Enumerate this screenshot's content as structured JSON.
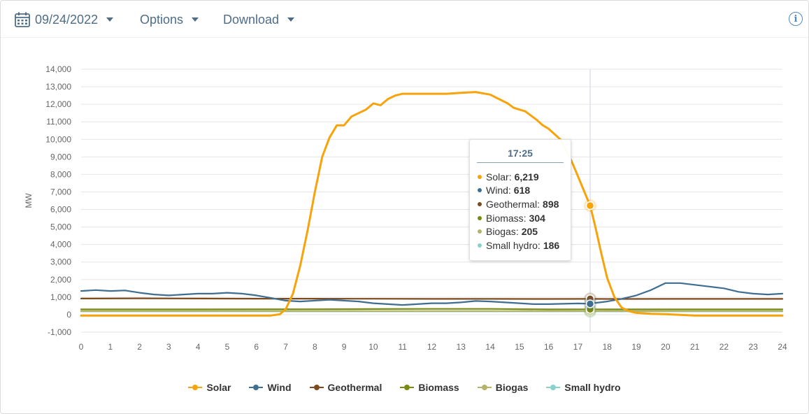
{
  "toolbar": {
    "date": "09/24/2022",
    "options_label": "Options",
    "download_label": "Download",
    "info_glyph": "i",
    "calendar_icon": "calendar-icon",
    "info_icon": "info-icon"
  },
  "tooltip": {
    "time": "17:25",
    "rows": [
      {
        "name": "Solar",
        "value": "6,219",
        "color": "#f7a40c"
      },
      {
        "name": "Wind",
        "value": "618",
        "color": "#3f6e91"
      },
      {
        "name": "Geothermal",
        "value": "898",
        "color": "#7d4a1c"
      },
      {
        "name": "Biomass",
        "value": "304",
        "color": "#7a8a10"
      },
      {
        "name": "Biogas",
        "value": "205",
        "color": "#b3b36b"
      },
      {
        "name": "Small hydro",
        "value": "186",
        "color": "#88d1cc"
      }
    ]
  },
  "chart_data": {
    "type": "line",
    "xlabel": "",
    "ylabel": "MW",
    "xlim": [
      0,
      24
    ],
    "ylim": [
      -1000,
      14000
    ],
    "x_ticks": [
      "0",
      "1",
      "2",
      "3",
      "4",
      "5",
      "6",
      "7",
      "8",
      "9",
      "10",
      "11",
      "12",
      "13",
      "14",
      "15",
      "16",
      "17",
      "18",
      "19",
      "20",
      "21",
      "22",
      "23",
      "24"
    ],
    "y_ticks": [
      "-1,000",
      "0",
      "1,000",
      "2,000",
      "3,000",
      "4,000",
      "5,000",
      "6,000",
      "7,000",
      "8,000",
      "9,000",
      "10,000",
      "11,000",
      "12,000",
      "13,000",
      "14,000"
    ],
    "grid": true,
    "legend_position": "bottom",
    "crosshair_x": 17.42,
    "series": [
      {
        "name": "Solar",
        "color": "#f7a40c",
        "x": [
          0,
          1,
          2,
          3,
          4,
          5,
          6,
          6.5,
          6.8,
          7,
          7.25,
          7.5,
          7.75,
          8,
          8.25,
          8.5,
          8.75,
          9,
          9.25,
          9.5,
          9.75,
          10,
          10.25,
          10.5,
          10.75,
          11,
          11.5,
          12,
          12.5,
          13,
          13.5,
          14,
          14.3,
          14.6,
          14.8,
          15,
          15.2,
          15.4,
          15.6,
          15.8,
          16,
          16.2,
          16.4,
          16.6,
          16.8,
          17,
          17.2,
          17.42,
          17.6,
          17.8,
          18,
          18.25,
          18.5,
          18.75,
          19,
          19.5,
          20,
          21,
          22,
          23,
          24
        ],
        "y": [
          -50,
          -50,
          -50,
          -50,
          -50,
          -50,
          -50,
          -50,
          20,
          300,
          1200,
          2800,
          4800,
          7000,
          9000,
          10100,
          10800,
          10800,
          11300,
          11500,
          11700,
          12050,
          11950,
          12300,
          12500,
          12600,
          12600,
          12600,
          12600,
          12650,
          12700,
          12550,
          12300,
          12050,
          11800,
          11700,
          11600,
          11350,
          11100,
          10800,
          10600,
          10300,
          10000,
          9400,
          8700,
          7900,
          7100,
          6219,
          5000,
          3500,
          2100,
          1000,
          400,
          200,
          100,
          50,
          30,
          -50,
          -50,
          -50,
          -50
        ]
      },
      {
        "name": "Wind",
        "color": "#3f6e91",
        "x": [
          0,
          0.5,
          1,
          1.5,
          2,
          2.5,
          3,
          3.5,
          4,
          4.5,
          5,
          5.5,
          6,
          6.5,
          7,
          7.5,
          8,
          8.5,
          9,
          9.5,
          10,
          10.5,
          11,
          11.5,
          12,
          12.5,
          13,
          13.5,
          14,
          14.5,
          15,
          15.5,
          16,
          16.5,
          17,
          17.42,
          17.5,
          18,
          18.5,
          19,
          19.5,
          20,
          20.5,
          21,
          21.5,
          22,
          22.5,
          23,
          23.5,
          24
        ],
        "y": [
          1350,
          1400,
          1350,
          1380,
          1250,
          1150,
          1100,
          1150,
          1200,
          1200,
          1250,
          1200,
          1100,
          950,
          800,
          750,
          800,
          850,
          800,
          750,
          650,
          600,
          550,
          600,
          650,
          650,
          700,
          780,
          750,
          700,
          650,
          600,
          600,
          620,
          640,
          618,
          650,
          750,
          900,
          1100,
          1400,
          1800,
          1800,
          1700,
          1600,
          1500,
          1300,
          1200,
          1150,
          1200
        ]
      },
      {
        "name": "Geothermal",
        "color": "#7d4a1c",
        "x": [
          0,
          2,
          4,
          6,
          8,
          10,
          12,
          14,
          16,
          17.42,
          18,
          20,
          22,
          24
        ],
        "y": [
          920,
          930,
          920,
          910,
          910,
          905,
          900,
          900,
          895,
          898,
          895,
          900,
          900,
          900
        ]
      },
      {
        "name": "Biomass",
        "color": "#7a8a10",
        "x": [
          0,
          4,
          8,
          10,
          12,
          14,
          16,
          17.42,
          18,
          20,
          22,
          24
        ],
        "y": [
          300,
          300,
          310,
          320,
          330,
          330,
          300,
          304,
          300,
          300,
          300,
          300
        ]
      },
      {
        "name": "Biogas",
        "color": "#b3b36b",
        "x": [
          0,
          4,
          8,
          12,
          16,
          17.42,
          20,
          24
        ],
        "y": [
          200,
          205,
          205,
          205,
          205,
          205,
          205,
          205
        ]
      },
      {
        "name": "Small hydro",
        "color": "#88d1cc",
        "x": [
          0,
          4,
          8,
          12,
          16,
          17.42,
          20,
          24
        ],
        "y": [
          185,
          185,
          186,
          186,
          186,
          186,
          186,
          186
        ]
      }
    ]
  }
}
